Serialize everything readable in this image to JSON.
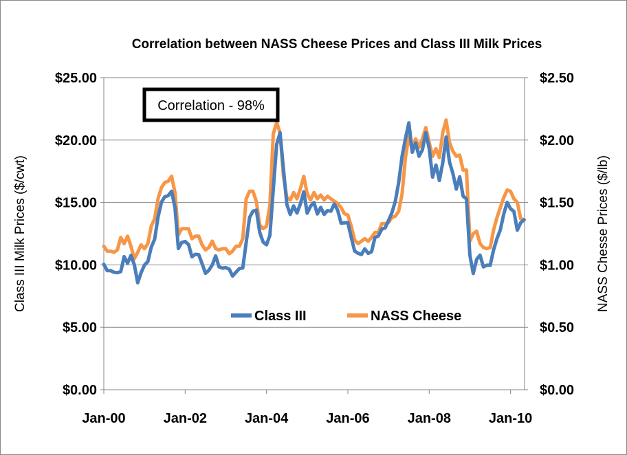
{
  "chart_data": {
    "type": "line",
    "title": "Correlation between NASS Cheese Prices and Class III Milk Prices",
    "annotation": "Correlation - 98%",
    "ylabel": "Class III Milk Prices ($/cwt)",
    "y2label": "NASS Chesse Prices ($/lb)",
    "ylim": [
      0,
      25
    ],
    "y2lim": [
      0,
      2.5
    ],
    "yticks": [
      "$0.00",
      "$5.00",
      "$10.00",
      "$15.00",
      "$20.00",
      "$25.00"
    ],
    "y2ticks": [
      "$0.00",
      "$0.50",
      "$1.00",
      "$1.50",
      "$2.00",
      "$2.50"
    ],
    "xticks": [
      "Jan-00",
      "Jan-02",
      "Jan-04",
      "Jan-06",
      "Jan-08",
      "Jan-10"
    ],
    "grid": "horizontal",
    "legend": "inside-bottom-center",
    "x": [
      "2000-01",
      "2000-02",
      "2000-03",
      "2000-04",
      "2000-05",
      "2000-06",
      "2000-07",
      "2000-08",
      "2000-09",
      "2000-10",
      "2000-11",
      "2000-12",
      "2001-01",
      "2001-02",
      "2001-03",
      "2001-04",
      "2001-05",
      "2001-06",
      "2001-07",
      "2001-08",
      "2001-09",
      "2001-10",
      "2001-11",
      "2001-12",
      "2002-01",
      "2002-02",
      "2002-03",
      "2002-04",
      "2002-05",
      "2002-06",
      "2002-07",
      "2002-08",
      "2002-09",
      "2002-10",
      "2002-11",
      "2002-12",
      "2003-01",
      "2003-02",
      "2003-03",
      "2003-04",
      "2003-05",
      "2003-06",
      "2003-07",
      "2003-08",
      "2003-09",
      "2003-10",
      "2003-11",
      "2003-12",
      "2004-01",
      "2004-02",
      "2004-03",
      "2004-04",
      "2004-05",
      "2004-06",
      "2004-07",
      "2004-08",
      "2004-09",
      "2004-10",
      "2004-11",
      "2004-12",
      "2005-01",
      "2005-02",
      "2005-03",
      "2005-04",
      "2005-05",
      "2005-06",
      "2005-07",
      "2005-08",
      "2005-09",
      "2005-10",
      "2005-11",
      "2005-12",
      "2006-01",
      "2006-02",
      "2006-03",
      "2006-04",
      "2006-05",
      "2006-06",
      "2006-07",
      "2006-08",
      "2006-09",
      "2006-10",
      "2006-11",
      "2006-12",
      "2007-01",
      "2007-02",
      "2007-03",
      "2007-04",
      "2007-05",
      "2007-06",
      "2007-07",
      "2007-08",
      "2007-09",
      "2007-10",
      "2007-11",
      "2007-12",
      "2008-01",
      "2008-02",
      "2008-03",
      "2008-04",
      "2008-05",
      "2008-06",
      "2008-07",
      "2008-08",
      "2008-09",
      "2008-10",
      "2008-11",
      "2008-12",
      "2009-01",
      "2009-02",
      "2009-03",
      "2009-04",
      "2009-05",
      "2009-06",
      "2009-07",
      "2009-08",
      "2009-09",
      "2009-10",
      "2009-11",
      "2009-12",
      "2010-01",
      "2010-02",
      "2010-03",
      "2010-04",
      "2010-05"
    ],
    "series": [
      {
        "name": "Class III",
        "axis": "left",
        "color": "#4a7ebb",
        "values": [
          10.05,
          9.54,
          9.54,
          9.41,
          9.37,
          9.46,
          10.66,
          10.13,
          10.76,
          10.02,
          8.57,
          9.37,
          9.99,
          10.27,
          11.42,
          12.06,
          13.83,
          15.02,
          15.46,
          15.55,
          15.9,
          14.6,
          11.31,
          11.8,
          11.87,
          11.63,
          10.65,
          10.85,
          10.82,
          10.09,
          9.33,
          9.57,
          10.0,
          10.72,
          9.84,
          9.74,
          9.78,
          9.66,
          9.11,
          9.41,
          9.71,
          9.75,
          11.78,
          13.8,
          14.3,
          14.39,
          12.61,
          11.83,
          11.61,
          12.37,
          16.05,
          19.66,
          20.58,
          17.68,
          14.85,
          14.04,
          14.72,
          14.16,
          14.89,
          15.86,
          14.14,
          14.7,
          15.0,
          14.08,
          14.61,
          14.05,
          14.35,
          14.3,
          14.88,
          14.37,
          13.35,
          13.37,
          13.39,
          12.2,
          11.11,
          10.93,
          10.83,
          11.29,
          10.92,
          11.06,
          12.2,
          12.32,
          12.86,
          12.96,
          13.56,
          14.18,
          15.09,
          16.6,
          18.7,
          20.13,
          21.38,
          19.02,
          19.77,
          18.7,
          19.22,
          20.6,
          19.32,
          17.03,
          18.0,
          16.76,
          18.18,
          20.25,
          18.24,
          17.32,
          16.07,
          17.06,
          15.51,
          15.28,
          10.78,
          9.31,
          10.44,
          10.78,
          9.84,
          9.97,
          9.97,
          11.2,
          12.11,
          12.82,
          14.08,
          15.01,
          14.5,
          14.28,
          12.78,
          13.38,
          13.62
        ]
      },
      {
        "name": "NASS Cheese",
        "axis": "right",
        "color": "#f79646",
        "values": [
          1.15,
          1.11,
          1.11,
          1.1,
          1.12,
          1.22,
          1.17,
          1.23,
          1.15,
          1.05,
          1.1,
          1.16,
          1.13,
          1.17,
          1.31,
          1.37,
          1.53,
          1.62,
          1.66,
          1.67,
          1.71,
          1.58,
          1.24,
          1.29,
          1.29,
          1.29,
          1.21,
          1.23,
          1.23,
          1.16,
          1.12,
          1.14,
          1.19,
          1.13,
          1.12,
          1.13,
          1.13,
          1.09,
          1.11,
          1.15,
          1.15,
          1.21,
          1.53,
          1.59,
          1.59,
          1.51,
          1.32,
          1.29,
          1.31,
          1.48,
          2.05,
          2.14,
          2.06,
          1.71,
          1.54,
          1.52,
          1.58,
          1.53,
          1.61,
          1.71,
          1.57,
          1.52,
          1.58,
          1.53,
          1.56,
          1.52,
          1.55,
          1.53,
          1.51,
          1.49,
          1.46,
          1.41,
          1.4,
          1.31,
          1.2,
          1.17,
          1.19,
          1.21,
          1.19,
          1.22,
          1.26,
          1.26,
          1.33,
          1.33,
          1.34,
          1.38,
          1.39,
          1.43,
          1.57,
          1.86,
          2.03,
          1.92,
          2.01,
          1.94,
          2.01,
          2.1,
          1.98,
          1.87,
          1.93,
          1.86,
          2.06,
          2.16,
          1.98,
          1.91,
          1.87,
          1.88,
          1.76,
          1.76,
          1.19,
          1.25,
          1.27,
          1.17,
          1.14,
          1.13,
          1.14,
          1.28,
          1.38,
          1.46,
          1.54,
          1.6,
          1.59,
          1.53,
          1.5,
          1.37,
          1.36
        ]
      }
    ]
  }
}
